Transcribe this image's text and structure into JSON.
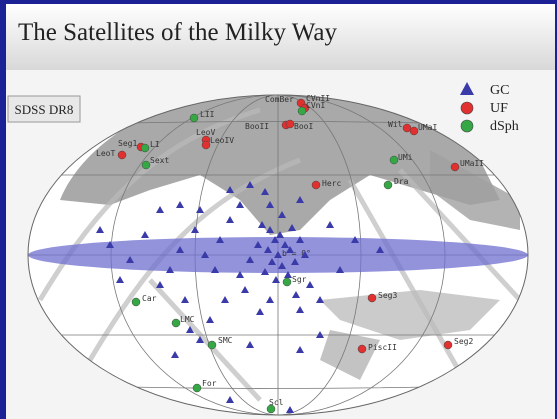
{
  "header": {
    "title": "The Satellites of the Milky Way"
  },
  "badge": "SDSS DR8",
  "legend": [
    "GC",
    "UF",
    "dSph"
  ],
  "band_label": "b = 0°",
  "satellites": [
    "ComBer",
    "CVnII",
    "CVnI",
    "BooII",
    "BooI",
    "LII",
    "LeoT",
    "Seg1",
    "LI",
    "LeoV",
    "LeoIV",
    "Sext",
    "Wil",
    "UMaI",
    "UMi",
    "UMaII",
    "Herc",
    "Dra",
    "Sgr",
    "Car",
    "Seg3",
    "LMC",
    "SMC",
    "PiscII",
    "Seg2",
    "For",
    "Scl"
  ]
}
